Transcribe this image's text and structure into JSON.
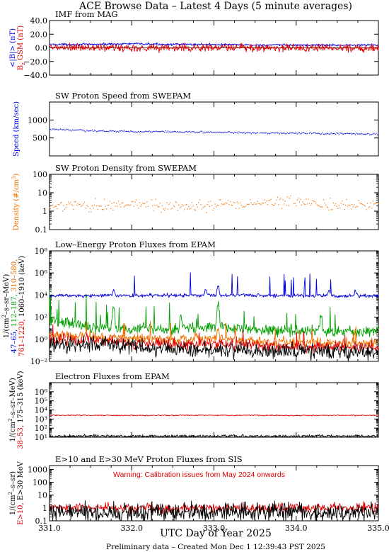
{
  "page": {
    "title": "ACE Browse Data – Latest 4 Days (5 minute averages)",
    "xlabel": "UTC Day of Year 2025",
    "footer": "Preliminary data – Created Mon Dec  1 12:39:43 PST 2025"
  },
  "colors": {
    "blue": "#0000e0",
    "red": "#e00000",
    "green": "#00a000",
    "orange": "#f07000",
    "black": "#000000"
  },
  "chart_data": [
    {
      "type": "line",
      "title": "IMF from MAG",
      "ylabels": [
        {
          "text": "<|B|> (nT)",
          "color": "#0000e0"
        },
        {
          "text": "B",
          "sub": "z",
          "after": " GSM (nT)",
          "color": "#e00000"
        }
      ],
      "scale": "linear",
      "xlim": [
        331.0,
        335.0
      ],
      "ylim": [
        -40,
        40
      ],
      "yticks": [
        -40,
        -20,
        0,
        20,
        40
      ],
      "ytick_labels": [
        "−40.0",
        "−20.0",
        "0.0",
        "20.0",
        "40.0"
      ],
      "zero_line": true,
      "series": [
        {
          "color": "#0000e0",
          "style": "line",
          "knots": [
            [
              331.0,
              5
            ],
            [
              331.5,
              5
            ],
            [
              332.0,
              6
            ],
            [
              332.5,
              5
            ],
            [
              333.0,
              5
            ],
            [
              333.5,
              4
            ],
            [
              334.0,
              4
            ],
            [
              334.5,
              4
            ],
            [
              335.0,
              4
            ]
          ],
          "noise": 0.8,
          "spikes": 0
        },
        {
          "color": "#e00000",
          "style": "line",
          "knots": [
            [
              331.0,
              0
            ],
            [
              332.0,
              0
            ],
            [
              333.0,
              0
            ],
            [
              334.0,
              0
            ],
            [
              335.0,
              0
            ]
          ],
          "noise": 3.0,
          "spikes": 0
        }
      ]
    },
    {
      "type": "line",
      "title": "SW Proton Speed from SWEPAM",
      "ylabels": [
        {
          "text": "Speed (km/sec)",
          "color": "#0000e0"
        }
      ],
      "scale": "linear",
      "xlim": [
        331.0,
        335.0
      ],
      "ylim": [
        0,
        1500
      ],
      "yticks": [
        500,
        1000
      ],
      "ytick_labels": [
        "500",
        "1000"
      ],
      "series": [
        {
          "color": "#0000e0",
          "style": "dots",
          "knots": [
            [
              331.0,
              740
            ],
            [
              331.3,
              720
            ],
            [
              331.6,
              690
            ],
            [
              332.0,
              680
            ],
            [
              332.5,
              670
            ],
            [
              333.0,
              655
            ],
            [
              333.5,
              640
            ],
            [
              334.0,
              630
            ],
            [
              334.5,
              620
            ],
            [
              335.0,
              600
            ]
          ],
          "noise": 12,
          "spikes": 0
        }
      ]
    },
    {
      "type": "line",
      "title": "SW Proton Density from SWEPAM",
      "ylabels": [
        {
          "text": "Density (#/cm",
          "sup": "3",
          "after": ")",
          "color": "#f07000"
        }
      ],
      "scale": "log",
      "xlim": [
        331.0,
        335.0
      ],
      "ylim": [
        0.1,
        100
      ],
      "yticks": [
        0.1,
        1,
        10,
        100
      ],
      "ytick_labels": [
        "0.1",
        "1",
        "10",
        "100"
      ],
      "series": [
        {
          "color": "#f07000",
          "style": "dots",
          "knots": [
            [
              331.0,
              1.4
            ],
            [
              331.2,
              1.8
            ],
            [
              331.5,
              2.0
            ],
            [
              332.0,
              2.2
            ],
            [
              332.5,
              2.0
            ],
            [
              333.0,
              2.1
            ],
            [
              333.5,
              2.8
            ],
            [
              333.9,
              3.4
            ],
            [
              334.2,
              2.4
            ],
            [
              334.6,
              2.0
            ],
            [
              335.0,
              1.9
            ]
          ],
          "noise": 0.15,
          "spikes": 0
        }
      ]
    },
    {
      "type": "line",
      "title": "Low–Energy Proton Fluxes from EPAM",
      "ylabels": [
        {
          "text": "1/(cm",
          "sup": "2",
          "after": "–s–sr–MeV)",
          "color": "#000000"
        },
        {
          "segments": [
            {
              "text": "47–65, ",
              "color": "#0000e0"
            },
            {
              "text": "112–187, ",
              "color": "#00a000"
            },
            {
              "text": "310–580,",
              "color": "#f07000"
            }
          ]
        },
        {
          "segments": [
            {
              "text": "761–1220, ",
              "color": "#e00000"
            },
            {
              "text": "1060–1910 (keV)",
              "color": "#000000"
            }
          ]
        }
      ],
      "scale": "log",
      "xlim": [
        331.0,
        335.0
      ],
      "ylim": [
        0.01,
        100000000
      ],
      "yticks": [
        0.01,
        1,
        100,
        10000,
        1000000,
        100000000
      ],
      "ytick_labels": [
        "10⁻²",
        "10⁰",
        "10²",
        "10⁴",
        "10⁶",
        "10⁸"
      ],
      "series": [
        {
          "color": "#0000e0",
          "style": "line",
          "knots": [
            [
              331.0,
              9000
            ],
            [
              332.0,
              9000
            ],
            [
              333.0,
              9500
            ],
            [
              334.0,
              9000
            ],
            [
              335.0,
              8500
            ]
          ],
          "noise": 0.08,
          "spikes": 14,
          "spike_amp": 1.0,
          "peaks": [
            [
              331.78,
              4
            ],
            [
              332.9,
              3.5
            ],
            [
              333.05,
              8
            ],
            [
              334.4,
              3.5
            ],
            [
              334.72,
              3
            ]
          ]
        },
        {
          "color": "#00a000",
          "style": "line",
          "knots": [
            [
              331.0,
              40
            ],
            [
              331.5,
              10
            ],
            [
              332.0,
              10
            ],
            [
              332.5,
              8
            ],
            [
              333.0,
              15
            ],
            [
              333.5,
              8
            ],
            [
              334.0,
              6
            ],
            [
              334.5,
              5
            ],
            [
              335.0,
              5
            ]
          ],
          "noise": 0.25,
          "spikes": 22,
          "spike_amp": 1.6,
          "peaks": [
            [
              331.78,
              60
            ],
            [
              332.6,
              20
            ],
            [
              333.05,
              100
            ],
            [
              334.3,
              20
            ]
          ]
        },
        {
          "color": "#f07000",
          "style": "line",
          "knots": [
            [
              331.0,
              2.5
            ],
            [
              331.5,
              2
            ],
            [
              332.0,
              1.2
            ],
            [
              332.5,
              1
            ],
            [
              333.0,
              1.2
            ],
            [
              333.5,
              0.6
            ],
            [
              334.0,
              0.5
            ],
            [
              334.5,
              0.4
            ],
            [
              335.0,
              0.5
            ]
          ],
          "noise": 0.22,
          "spikes": 12,
          "spike_amp": 0.8,
          "peaks": [
            [
              333.05,
              10
            ]
          ]
        },
        {
          "color": "#e00000",
          "style": "line",
          "knots": [
            [
              331.0,
              0.8
            ],
            [
              331.5,
              0.9
            ],
            [
              332.0,
              0.5
            ],
            [
              332.5,
              0.35
            ],
            [
              333.0,
              0.4
            ],
            [
              333.5,
              0.25
            ],
            [
              334.0,
              0.2
            ],
            [
              334.5,
              0.2
            ],
            [
              335.0,
              0.2
            ]
          ],
          "noise": 0.25,
          "spikes": 8,
          "spike_amp": 0.5,
          "peaks": []
        },
        {
          "color": "#000000",
          "style": "line",
          "knots": [
            [
              331.0,
              0.3
            ],
            [
              331.5,
              0.4
            ],
            [
              332.0,
              0.2
            ],
            [
              332.5,
              0.15
            ],
            [
              333.0,
              0.1
            ],
            [
              333.5,
              0.09
            ],
            [
              334.0,
              0.08
            ],
            [
              334.5,
              0.07
            ],
            [
              335.0,
              0.06
            ]
          ],
          "noise": 0.35,
          "spikes": 0,
          "peaks": []
        }
      ]
    },
    {
      "type": "line",
      "title": "Electron Fluxes from EPAM",
      "ylabels": [
        {
          "text": "1/(cm",
          "sup": "2",
          "after": "–s–sr–MeV)",
          "color": "#000000"
        },
        {
          "segments": [
            {
              "text": "38–53, ",
              "color": "#e00000"
            },
            {
              "text": "175–315 (keV)",
              "color": "#000000"
            }
          ]
        }
      ],
      "scale": "log",
      "xlim": [
        331.0,
        335.0
      ],
      "ylim": [
        10,
        10000000
      ],
      "yticks": [
        10,
        100,
        1000,
        10000,
        100000,
        1000000
      ],
      "ytick_labels": [
        "10¹",
        "10²",
        "10³",
        "10⁴",
        "10⁵",
        "10⁶"
      ],
      "series": [
        {
          "color": "#e00000",
          "style": "line",
          "knots": [
            [
              331.0,
              2600
            ],
            [
              332.0,
              2500
            ],
            [
              333.0,
              2600
            ],
            [
              334.0,
              2500
            ],
            [
              335.0,
              2600
            ]
          ],
          "noise": 0.03,
          "spikes": 0,
          "peaks": []
        },
        {
          "color": "#000000",
          "style": "line",
          "knots": [
            [
              331.0,
              13
            ],
            [
              333.0,
              13
            ],
            [
              335.0,
              13
            ]
          ],
          "noise": 0.08,
          "spikes": 0,
          "peaks": []
        }
      ]
    },
    {
      "type": "line",
      "title": "E>10 and E>30 MeV Proton Fluxes from SIS",
      "annotation": "Warning: Calibration issues from May 2024 onwards",
      "ylabels": [
        {
          "text": "1/(cm",
          "sup": "2",
          "after": "–s–sr)",
          "color": "#000000"
        },
        {
          "segments": [
            {
              "text": "E>10, ",
              "color": "#e00000"
            },
            {
              "text": "E>30 MeV",
              "color": "#000000"
            }
          ]
        }
      ],
      "scale": "log",
      "xlim": [
        331.0,
        335.0
      ],
      "ylim": [
        0.1,
        2000
      ],
      "yticks": [
        0.1,
        1,
        10,
        100,
        1000
      ],
      "ytick_labels": [
        "0.1",
        "1",
        "10",
        "100",
        "1000"
      ],
      "xticks": [
        331,
        332,
        333,
        334,
        335
      ],
      "xtick_labels": [
        "331.0",
        "332.0",
        "333.0",
        "334.0",
        "335.0"
      ],
      "series": [
        {
          "color": "#e00000",
          "style": "line",
          "knots": [
            [
              331.0,
              1.0
            ],
            [
              333.0,
              1.0
            ],
            [
              335.0,
              1.0
            ]
          ],
          "noise": 0.18,
          "spikes": 0,
          "peaks": []
        },
        {
          "color": "#000000",
          "style": "line",
          "knots": [
            [
              331.0,
              0.45
            ],
            [
              333.0,
              0.45
            ],
            [
              335.0,
              0.45
            ]
          ],
          "noise": 0.35,
          "spikes": 0,
          "peaks": []
        }
      ]
    }
  ]
}
